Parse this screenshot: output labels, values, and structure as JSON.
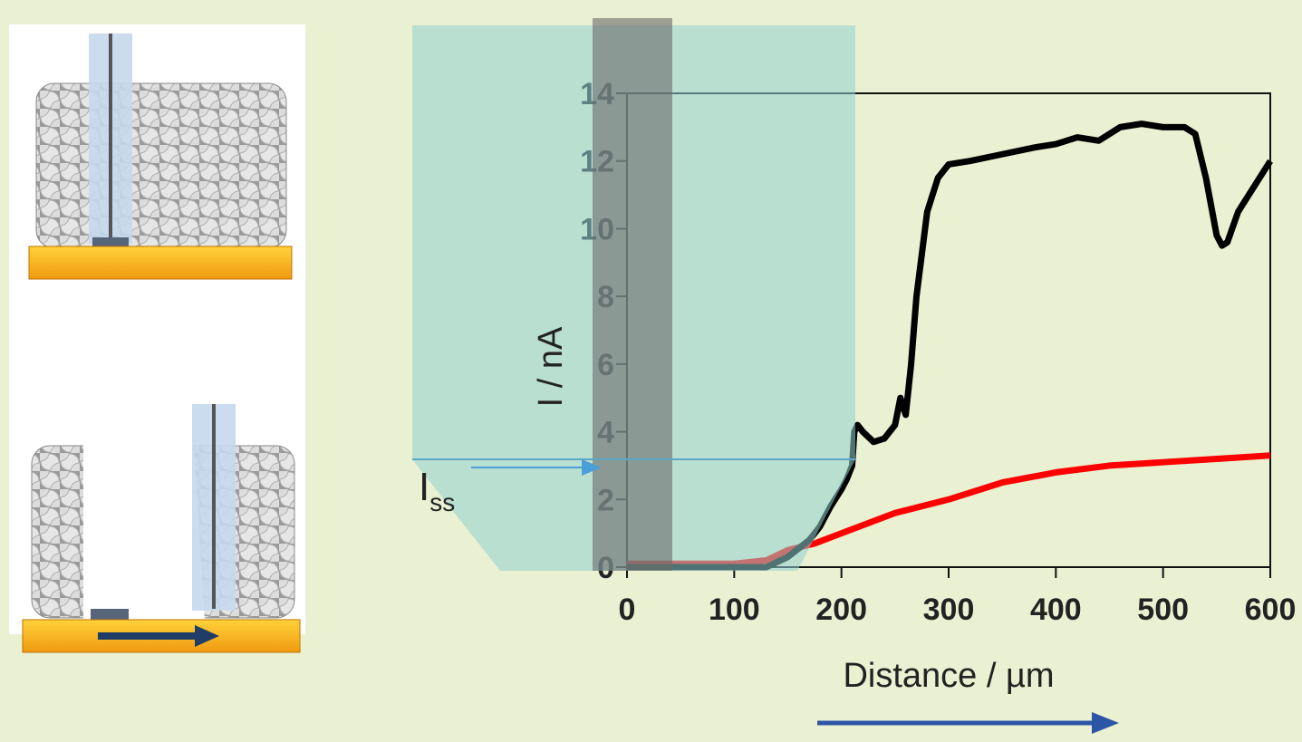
{
  "chart_data": {
    "type": "line",
    "x_label": "Distance / µm",
    "y_label": "I / nA",
    "annotation": {
      "text": "I",
      "subscript": "ss"
    },
    "xlim": [
      0,
      600
    ],
    "xticks": [
      0,
      100,
      200,
      300,
      400,
      500,
      600
    ],
    "ylim": [
      0,
      14
    ],
    "yticks": [
      0,
      2,
      4,
      6,
      8,
      10,
      12,
      14
    ],
    "series": [
      {
        "color": "#000000",
        "x": [
          0,
          40,
          80,
          120,
          130,
          150,
          170,
          180,
          190,
          200,
          205,
          210,
          212,
          215,
          220,
          230,
          240,
          250,
          255,
          260,
          265,
          270,
          280,
          290,
          300,
          320,
          350,
          380,
          400,
          420,
          440,
          460,
          480,
          500,
          520,
          530,
          540,
          550,
          555,
          560,
          570,
          590,
          600
        ],
        "values": [
          0,
          0,
          0,
          0,
          0,
          0.3,
          0.8,
          1.2,
          1.8,
          2.3,
          2.6,
          3.0,
          4.0,
          4.2,
          4.0,
          3.7,
          3.8,
          4.2,
          5.0,
          4.5,
          6.0,
          8.0,
          10.5,
          11.5,
          11.9,
          12.0,
          12.2,
          12.4,
          12.5,
          12.7,
          12.6,
          13.0,
          13.1,
          13.0,
          13.0,
          12.8,
          11.5,
          9.8,
          9.5,
          9.6,
          10.5,
          11.5,
          12.0
        ]
      },
      {
        "color": "#ff0000",
        "x": [
          0,
          50,
          100,
          130,
          150,
          175,
          200,
          250,
          300,
          350,
          400,
          450,
          500,
          550,
          600
        ],
        "values": [
          0.1,
          0.1,
          0.1,
          0.2,
          0.5,
          0.7,
          1.0,
          1.6,
          2.0,
          2.5,
          2.8,
          3.0,
          3.1,
          3.2,
          3.3
        ]
      }
    ]
  }
}
